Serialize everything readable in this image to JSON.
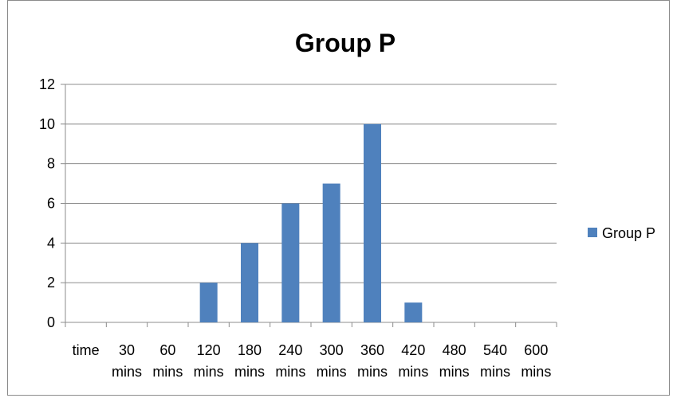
{
  "chart_data": {
    "type": "bar",
    "title": "Group P",
    "categories": [
      [
        "time",
        ""
      ],
      [
        "30",
        "mins"
      ],
      [
        "60",
        "mins"
      ],
      [
        "120",
        "mins"
      ],
      [
        "180",
        "mins"
      ],
      [
        "240",
        "mins"
      ],
      [
        "300",
        "mins"
      ],
      [
        "360",
        "mins"
      ],
      [
        "420",
        "mins"
      ],
      [
        "480",
        "mins"
      ],
      [
        "540",
        "mins"
      ],
      [
        "600",
        "mins"
      ]
    ],
    "series": [
      {
        "name": "Group P",
        "color": "#4f81bd",
        "values": [
          0,
          0,
          0,
          2,
          4,
          6,
          7,
          10,
          1,
          0,
          0,
          0
        ]
      }
    ],
    "ylim": [
      0,
      12
    ],
    "yticks": [
      0,
      2,
      4,
      6,
      8,
      10,
      12
    ],
    "grid": true,
    "legend_position": "right",
    "xlabel": "",
    "ylabel": ""
  }
}
